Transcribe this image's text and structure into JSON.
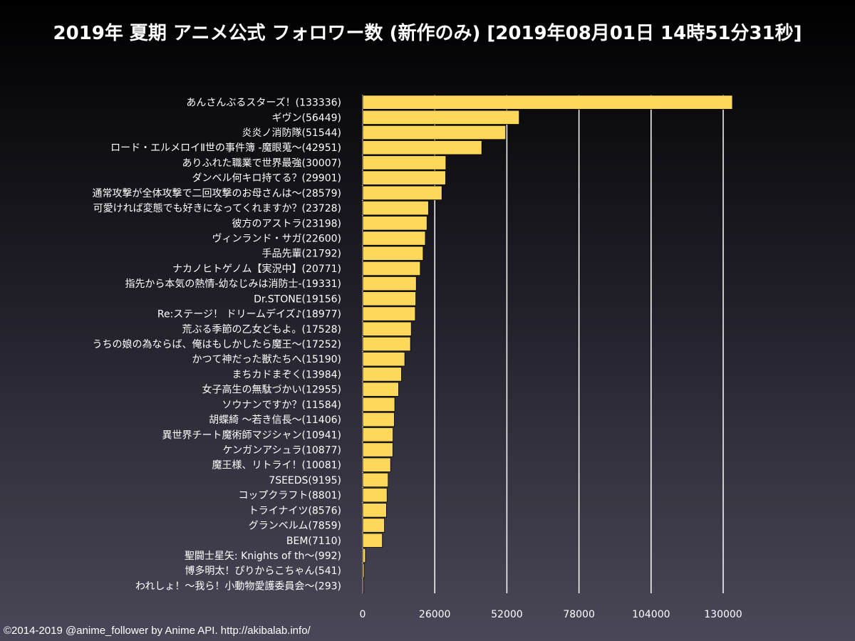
{
  "chart_data": {
    "type": "bar",
    "orientation": "horizontal",
    "title": "2019年 夏期 アニメ公式 フォロワー数 (新作のみ) [2019年08月01日 14時51分31秒]",
    "categories": [
      "あんさんぶるスターズ！(133336)",
      "ギヴン(56449)",
      "炎炎ノ消防隊(51544)",
      "ロード・エルメロイⅡ世の事件簿 -魔眼蒐～(42951)",
      "ありふれた職業で世界最強(30007)",
      "ダンベル何キロ持てる？(29901)",
      "通常攻撃が全体攻撃で二回攻撃のお母さんは～(28579)",
      "可愛ければ変態でも好きになってくれますか？(23728)",
      "彼方のアストラ(23198)",
      "ヴィンランド・サガ(22600)",
      "手品先輩(21792)",
      "ナカノヒトゲノム【実況中】(20771)",
      "指先から本気の熱情-幼なじみは消防士-(19331)",
      "Dr.STONE(19156)",
      "Re:ステージ！ ドリームデイズ♪(18977)",
      "荒ぶる季節の乙女どもよ。(17528)",
      "うちの娘の為ならば、俺はもしかしたら魔王～(17252)",
      "かつて神だった獣たちへ(15190)",
      "まちカドまぞく(13984)",
      "女子高生の無駄づかい(12955)",
      "ソウナンですか？(11584)",
      "胡蝶綺 ～若き信長～(11406)",
      "異世界チート魔術師マジシャン(10941)",
      "ケンガンアシュラ(10877)",
      "魔王様、リトライ！(10081)",
      "7SEEDS(9195)",
      "コップクラフト(8801)",
      "トライナイツ(8576)",
      "グランベルム(7859)",
      "BEM(7110)",
      "聖闘士星矢: Knights of th～(992)",
      "博多明太！ぴりからこちゃん(541)",
      "われしょ！～我ら！小動物愛護委員会～(293)"
    ],
    "values": [
      133336,
      56449,
      51544,
      42951,
      30007,
      29901,
      28579,
      23728,
      23198,
      22600,
      21792,
      20771,
      19331,
      19156,
      18977,
      17528,
      17252,
      15190,
      13984,
      12955,
      11584,
      11406,
      10941,
      10877,
      10081,
      9195,
      8801,
      8576,
      7859,
      7110,
      992,
      541,
      293
    ],
    "xlim": [
      0,
      130000
    ],
    "xticks": [
      "0",
      "26000",
      "52000",
      "78000",
      "104000",
      "130000"
    ],
    "xtick_values": [
      0,
      26000,
      52000,
      78000,
      104000,
      130000
    ],
    "grid": "vertical",
    "bar_color": "#fdd85a",
    "bar_edge_color": "#000000",
    "grid_color": "#ffffff"
  },
  "footer": "©2014-2019 @anime_follower by Anime API. http://akibalab.info/"
}
